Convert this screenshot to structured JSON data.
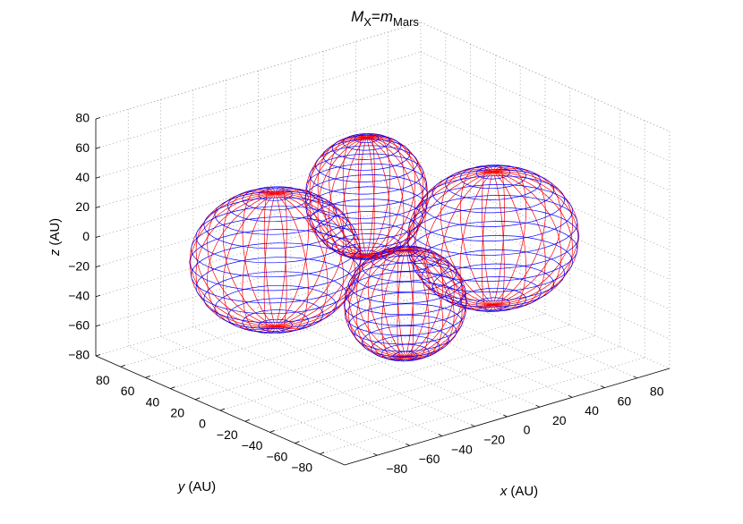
{
  "chart_data": {
    "type": "wireframe3d",
    "title": [
      {
        "text": "M",
        "italic": true
      },
      {
        "text": "X",
        "sub": true
      },
      {
        "text": "="
      },
      {
        "text": "m",
        "italic": true
      },
      {
        "text": "Mars",
        "sub": true
      }
    ],
    "xlabel": {
      "var": "x",
      "unit": "(AU)"
    },
    "ylabel": {
      "var": "y",
      "unit": "(AU)"
    },
    "zlabel": {
      "var": "z",
      "unit": "(AU)"
    },
    "xlim": [
      -100,
      100
    ],
    "ylim": [
      -100,
      100
    ],
    "zlim": [
      -80,
      80
    ],
    "xticks": [
      {
        "value": -80,
        "label": "−80"
      },
      {
        "value": -60,
        "label": "−60"
      },
      {
        "value": -40,
        "label": "−40"
      },
      {
        "value": -20,
        "label": "−20"
      },
      0,
      20,
      40,
      60,
      80
    ],
    "yticks": [
      {
        "value": -80,
        "label": "−80"
      },
      {
        "value": -60,
        "label": "−60"
      },
      {
        "value": -40,
        "label": "−40"
      },
      {
        "value": -20,
        "label": "−20"
      },
      0,
      20,
      40,
      60,
      80
    ],
    "zticks": [
      {
        "value": -80,
        "label": "−80"
      },
      {
        "value": -60,
        "label": "−60"
      },
      {
        "value": -40,
        "label": "−40"
      },
      {
        "value": -20,
        "label": "−20"
      },
      0,
      20,
      40,
      60,
      80
    ],
    "grid": true,
    "line_colors": [
      "#ff0000",
      "#0000ff"
    ],
    "surfaces": [
      {
        "center": [
          -53,
          17,
          0
        ],
        "radii": [
          42,
          42,
          45
        ]
      },
      {
        "center": [
          45,
          -30,
          0
        ],
        "radii": [
          42,
          42,
          45
        ]
      },
      {
        "center": [
          -10,
          0,
          35
        ],
        "radii": [
          30,
          30,
          40
        ]
      },
      {
        "center": [
          14,
          0,
          -45
        ],
        "radii": [
          30,
          30,
          36
        ]
      }
    ]
  }
}
